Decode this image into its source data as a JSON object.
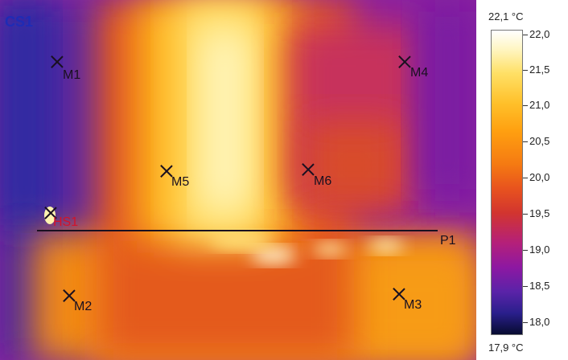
{
  "image": {
    "cs_label": "CS1",
    "hs_label": "HS1",
    "profile_label": "P1",
    "markers": [
      {
        "id": "m1",
        "label": "M1"
      },
      {
        "id": "m4",
        "label": "M4"
      },
      {
        "id": "m5",
        "label": "M5"
      },
      {
        "id": "m6",
        "label": "M6"
      },
      {
        "id": "m2",
        "label": "M2"
      },
      {
        "id": "m3",
        "label": "M3"
      }
    ]
  },
  "scale": {
    "max_label": "22,1 °C",
    "min_label": "17,9 °C",
    "ticks": [
      "22,0",
      "21,5",
      "21,0",
      "20,5",
      "20,0",
      "19,5",
      "19,0",
      "18,5",
      "18,0"
    ]
  }
}
